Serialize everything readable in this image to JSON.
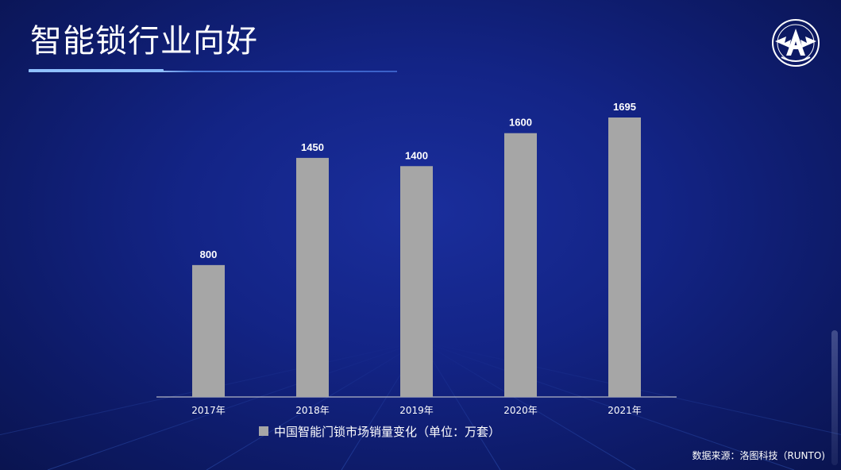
{
  "title": "智能锁行业向好",
  "source_note": "数据来源：洛图科技（RUNTO)",
  "colors": {
    "bar": "#a6a6a6",
    "axis": "#d9d9d9",
    "label": "#ffffff"
  },
  "logo": {
    "icon": "eagle-a-emblem-icon"
  },
  "chart_data": {
    "type": "bar",
    "categories": [
      "2017年",
      "2018年",
      "2019年",
      "2020年",
      "2021年"
    ],
    "series": [
      {
        "name": "中国智能门锁市场销量变化（单位：万套）",
        "values": [
          800,
          1450,
          1400,
          1600,
          1695
        ]
      }
    ],
    "ylim": [
      0,
      1800
    ],
    "grid": false,
    "legend_position": "bottom",
    "data_labels": true
  }
}
